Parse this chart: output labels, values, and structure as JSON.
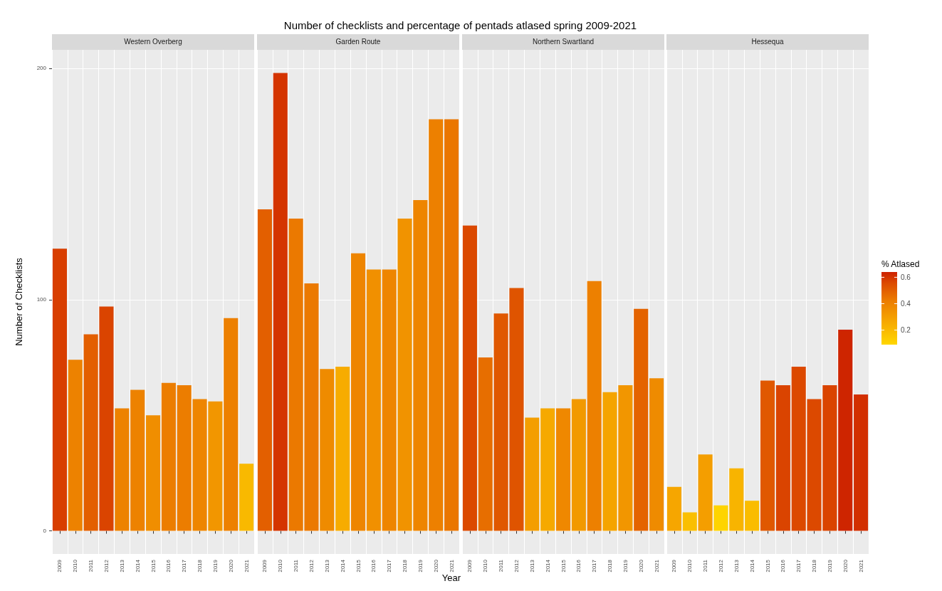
{
  "chart_data": [
    {
      "type": "bar",
      "title": "Western Overberg",
      "annotations": [
        "Number of checklists and percentage of pentads atlased spring 2009-2021"
      ],
      "ylabel": "Number of Checklists",
      "categories": [
        "2009",
        "2010",
        "2011",
        "2012",
        "2013",
        "2014",
        "2015",
        "2016",
        "2017",
        "2018",
        "2019",
        "2020",
        "2021"
      ],
      "values": [
        122,
        74,
        85,
        97,
        53,
        61,
        50,
        64,
        63,
        57,
        56,
        92,
        29
      ],
      "colors": [
        "#d83e00",
        "#ed8200",
        "#e35f00",
        "#da4400",
        "#ed8200",
        "#ed8200",
        "#f08e00",
        "#ec7d00",
        "#ec7d00",
        "#ee8500",
        "#f29600",
        "#ed8000",
        "#f9b900"
      ],
      "ylim": [
        -10,
        208
      ],
      "yticks": [
        0,
        100,
        200
      ],
      "grid": true
    },
    {
      "type": "bar",
      "title": "Garden Route",
      "xlabel": "Year",
      "categories": [
        "2009",
        "2010",
        "2011",
        "2012",
        "2013",
        "2014",
        "2015",
        "2016",
        "2017",
        "2018",
        "2019",
        "2020",
        "2021"
      ],
      "values": [
        139,
        198,
        135,
        107,
        70,
        71,
        120,
        113,
        113,
        135,
        143,
        178,
        178
      ],
      "colors": [
        "#e35f00",
        "#d43400",
        "#eb7900",
        "#eb7900",
        "#ef8b00",
        "#f7ac00",
        "#ee8500",
        "#f19000",
        "#ee8500",
        "#f19300",
        "#ee8500",
        "#ed8000",
        "#ea7600"
      ],
      "ylim": [
        -10,
        208
      ],
      "yticks": [
        0,
        100,
        200
      ],
      "grid": true,
      "tick_labels": "x"
    },
    {
      "type": "bar",
      "title": "Northern Swartland",
      "categories": [
        "2009",
        "2010",
        "2011",
        "2012",
        "2013",
        "2014",
        "2015",
        "2016",
        "2017",
        "2018",
        "2019",
        "2020",
        "2021"
      ],
      "values": [
        132,
        75,
        94,
        105,
        49,
        53,
        53,
        57,
        108,
        60,
        63,
        96,
        66
      ],
      "colors": [
        "#db4900",
        "#e76e00",
        "#e05800",
        "#df5400",
        "#f49e00",
        "#f6a900",
        "#ef8800",
        "#f29900",
        "#ed8000",
        "#f5a400",
        "#f29600",
        "#e46300",
        "#ef8b00"
      ],
      "ylim": [
        -10,
        208
      ],
      "yticks": [
        0,
        100,
        200
      ],
      "grid": true,
      "tick_labels": "x"
    },
    {
      "type": "bar",
      "title": "Hessequa",
      "clabel": "% Atlased",
      "clim": [
        0.09,
        0.64
      ],
      "cticks": [
        0.2,
        0.4,
        0.6
      ],
      "categories": [
        "2009",
        "2010",
        "2011",
        "2012",
        "2013",
        "2014",
        "2015",
        "2016",
        "2017",
        "2018",
        "2019",
        "2020",
        "2021"
      ],
      "values": [
        19,
        8,
        33,
        11,
        27,
        13,
        65,
        63,
        71,
        57,
        63,
        87,
        59
      ],
      "cvalues": [
        0.27,
        0.18,
        0.3,
        0.1,
        0.22,
        0.19,
        0.52,
        0.57,
        0.56,
        0.56,
        0.57,
        0.63,
        0.61
      ],
      "ylim": [
        -10,
        208
      ],
      "yticks": [
        0,
        100,
        200
      ],
      "grid": true,
      "tick_labels": "x"
    }
  ]
}
